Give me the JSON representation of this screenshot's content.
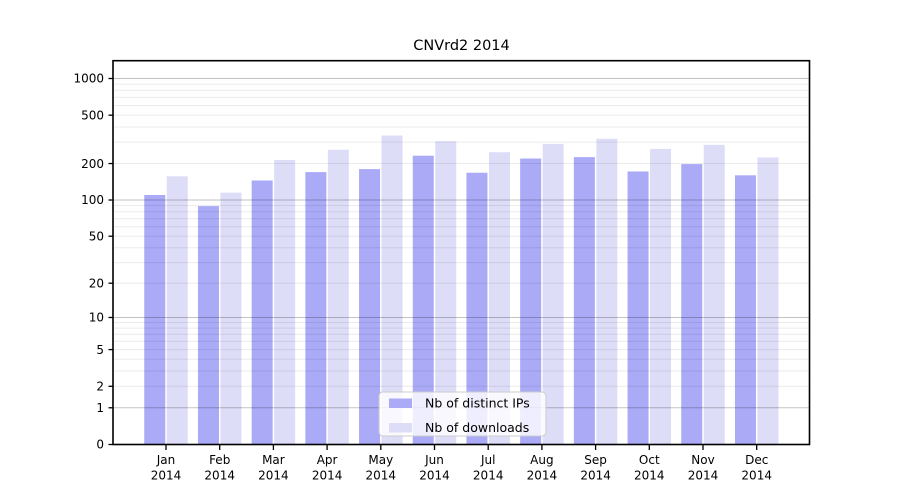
{
  "chart_data": {
    "type": "bar",
    "title": "CNVrd2 2014",
    "categories": [
      "Jan",
      "Feb",
      "Mar",
      "Apr",
      "May",
      "Jun",
      "Jul",
      "Aug",
      "Sep",
      "Oct",
      "Nov",
      "Dec"
    ],
    "x_year_label": "2014",
    "series": [
      {
        "name": "Nb of distinct IPs",
        "color": "#AAAAF7",
        "values": [
          110,
          89,
          145,
          170,
          180,
          232,
          168,
          220,
          226,
          172,
          198,
          160
        ]
      },
      {
        "name": "Nb of downloads",
        "color": "#DDDDF8",
        "values": [
          157,
          115,
          214,
          260,
          340,
          305,
          248,
          290,
          320,
          264,
          285,
          224
        ]
      }
    ],
    "y_axis": {
      "scale": "log1p",
      "tick_values": [
        0,
        1,
        2,
        5,
        10,
        20,
        50,
        100,
        200,
        500,
        1000
      ],
      "range": [
        0,
        1000
      ],
      "minor_grid_multiples": [
        2,
        3,
        4,
        5,
        6,
        7,
        8,
        9
      ]
    },
    "x_axis": {
      "ticks_at": "group-centers"
    },
    "legend": {
      "position": "lower center",
      "entries": [
        "Nb of distinct IPs",
        "Nb of downloads"
      ]
    },
    "grid": "on",
    "colors": {
      "background": "#ffffff",
      "bar_distinct_ips": "#AAAAF7",
      "bar_downloads": "#DDDDF8",
      "grid_major": "rgba(0,0,0,0.24)",
      "grid_minor": "rgba(0,0,0,0.08)",
      "axis": "#000000",
      "legend_border": "#cccccc"
    }
  }
}
